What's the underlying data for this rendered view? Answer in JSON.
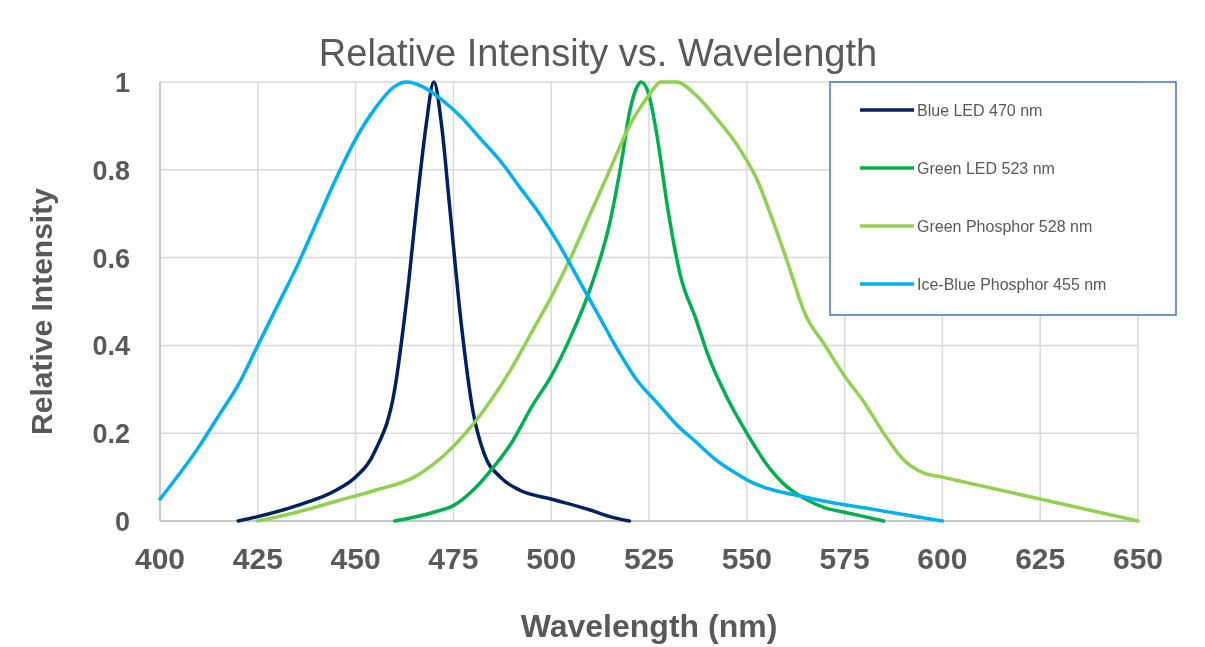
{
  "chart_data": {
    "type": "line",
    "title": "Relative Intensity vs. Wavelength",
    "xlabel": "Wavelength (nm)",
    "ylabel": "Relative Intensity",
    "xlim": [
      400,
      650
    ],
    "xticks": [
      400,
      425,
      450,
      475,
      500,
      525,
      550,
      575,
      600,
      625,
      650
    ],
    "ylim": [
      0,
      1
    ],
    "yticks": [
      0,
      0.2,
      0.4,
      0.6,
      0.8,
      1
    ],
    "grid": true,
    "legend": "top right",
    "marker": "none",
    "line_style": "solid",
    "series": [
      {
        "name": "Blue LED 470 nm",
        "color": "#002060",
        "x": [
          420,
          425,
          435,
          445,
          450,
          455,
          460,
          463,
          466,
          468,
          470,
          472,
          474,
          477,
          480,
          483,
          487,
          492,
          500,
          510,
          515,
          520
        ],
        "values": [
          0,
          0.01,
          0.035,
          0.07,
          0.1,
          0.16,
          0.3,
          0.5,
          0.75,
          0.9,
          1,
          0.9,
          0.72,
          0.45,
          0.25,
          0.15,
          0.1,
          0.07,
          0.05,
          0.025,
          0.01,
          0
        ]
      },
      {
        "name": "Green LED 523 nm",
        "color": "#00b050",
        "x": [
          460,
          470,
          475,
          480,
          485,
          490,
          495,
          500,
          505,
          510,
          515,
          518,
          520,
          522,
          523,
          525,
          527,
          530,
          533,
          537,
          540,
          545,
          550,
          555,
          560,
          565,
          570,
          575,
          585
        ],
        "values": [
          0,
          0.02,
          0.035,
          0.07,
          0.12,
          0.18,
          0.26,
          0.33,
          0.42,
          0.53,
          0.68,
          0.82,
          0.93,
          0.99,
          1,
          0.97,
          0.88,
          0.7,
          0.56,
          0.46,
          0.38,
          0.28,
          0.2,
          0.13,
          0.08,
          0.05,
          0.03,
          0.02,
          0
        ]
      },
      {
        "name": "Green Phosphor 528 nm",
        "color": "#92d050",
        "x": [
          425,
          435,
          445,
          455,
          465,
          470,
          475,
          480,
          485,
          490,
          495,
          500,
          505,
          510,
          515,
          520,
          525,
          528,
          532,
          537,
          542,
          548,
          553,
          556,
          560,
          565,
          570,
          575,
          580,
          585,
          590,
          595,
          600,
          610,
          625,
          650
        ],
        "values": [
          0,
          0.02,
          0.045,
          0.07,
          0.1,
          0.13,
          0.17,
          0.22,
          0.28,
          0.35,
          0.43,
          0.51,
          0.6,
          0.7,
          0.8,
          0.9,
          0.97,
          1,
          1,
          0.97,
          0.92,
          0.85,
          0.77,
          0.7,
          0.6,
          0.47,
          0.4,
          0.33,
          0.27,
          0.2,
          0.14,
          0.11,
          0.1,
          0.08,
          0.05,
          0
        ]
      },
      {
        "name": "Ice-Blue Phosphor 455 nm",
        "color": "#00b0f0",
        "x": [
          400,
          410,
          415,
          420,
          425,
          430,
          435,
          440,
          445,
          450,
          455,
          460,
          463,
          467,
          472,
          477,
          482,
          487,
          492,
          497,
          502,
          507,
          512,
          517,
          522,
          527,
          532,
          537,
          542,
          547,
          552,
          557,
          562,
          570,
          580,
          590,
          600
        ],
        "values": [
          0.05,
          0.17,
          0.24,
          0.31,
          0.4,
          0.49,
          0.58,
          0.68,
          0.78,
          0.87,
          0.94,
          0.99,
          1,
          0.99,
          0.96,
          0.92,
          0.87,
          0.82,
          0.76,
          0.7,
          0.63,
          0.55,
          0.47,
          0.39,
          0.32,
          0.27,
          0.22,
          0.18,
          0.14,
          0.11,
          0.085,
          0.07,
          0.06,
          0.045,
          0.03,
          0.015,
          0
        ]
      }
    ]
  }
}
